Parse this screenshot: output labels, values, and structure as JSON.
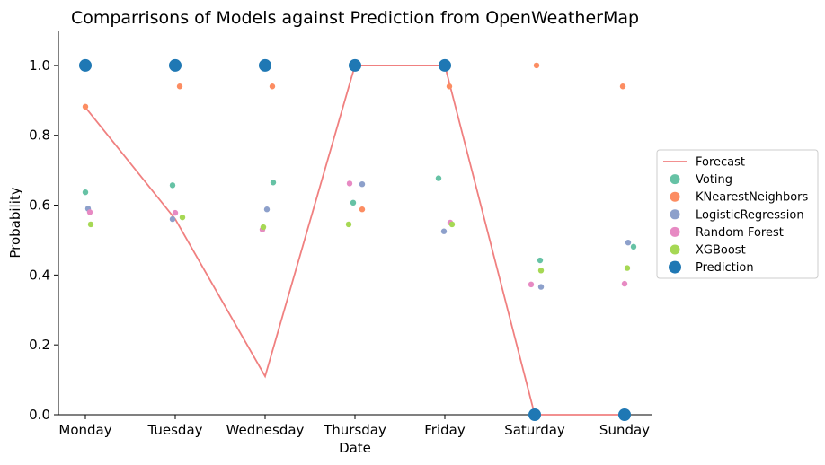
{
  "chart_data": {
    "type": "scatter",
    "title": "Comparrisons of Models against Prediction from OpenWeatherMap",
    "xlabel": "Date",
    "ylabel": "Probability",
    "categories": [
      "Monday",
      "Tuesday",
      "Wednesday",
      "Thursday",
      "Friday",
      "Saturday",
      "Sunday"
    ],
    "ylim": [
      0,
      1.1
    ],
    "yticks": [
      0.0,
      0.2,
      0.4,
      0.6,
      0.8,
      1.0
    ],
    "ytick_labels": [
      "0.0",
      "0.2",
      "0.4",
      "0.6",
      "0.8",
      "1.0"
    ],
    "legend_position": "center-right",
    "forecast": {
      "name": "Forecast",
      "color": "#f08080",
      "values": [
        0.88,
        0.56,
        0.11,
        1.0,
        1.0,
        0.0,
        0.0
      ]
    },
    "series": [
      {
        "name": "Voting",
        "color": "#66c2a5",
        "values": [
          0.637,
          0.657,
          0.665,
          0.607,
          0.677,
          0.442,
          0.481
        ],
        "jitter": [
          0.0,
          -0.03,
          0.09,
          -0.02,
          -0.07,
          0.06,
          0.1
        ]
      },
      {
        "name": "KNearestNeighbors",
        "color": "#fc8d62",
        "values": [
          0.882,
          0.94,
          0.94,
          0.588,
          0.94,
          1.0,
          0.94
        ],
        "jitter": [
          0.0,
          0.05,
          0.08,
          0.08,
          0.05,
          0.02,
          -0.02
        ]
      },
      {
        "name": "LogisticRegression",
        "color": "#8da0cb",
        "values": [
          0.59,
          0.56,
          0.588,
          0.66,
          0.525,
          0.366,
          0.493
        ],
        "jitter": [
          0.03,
          -0.03,
          0.02,
          0.08,
          -0.01,
          0.07,
          0.04
        ]
      },
      {
        "name": "Random Forest",
        "color": "#e78ac3",
        "values": [
          0.58,
          0.578,
          0.53,
          0.662,
          0.55,
          0.373,
          0.375
        ],
        "jitter": [
          0.05,
          0.0,
          -0.03,
          -0.06,
          0.06,
          -0.04,
          0.0
        ]
      },
      {
        "name": "XGBoost",
        "color": "#a6d854",
        "values": [
          0.545,
          0.565,
          0.537,
          0.545,
          0.545,
          0.413,
          0.42
        ],
        "jitter": [
          0.06,
          0.08,
          -0.02,
          -0.07,
          0.08,
          0.07,
          0.03
        ]
      }
    ],
    "prediction": {
      "name": "Prediction",
      "color": "#1f78b4",
      "values": [
        1.0,
        1.0,
        1.0,
        1.0,
        1.0,
        0.0,
        0.0
      ]
    }
  }
}
